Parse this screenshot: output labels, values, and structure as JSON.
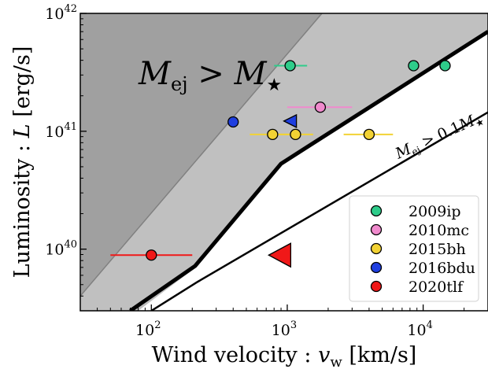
{
  "chart_data": {
    "type": "scatter",
    "title": "",
    "xlabel": "Wind velocity : v_w [km/s]",
    "ylabel": "Luminosity : L [erg/s]",
    "xlabel_parts": {
      "text": "Wind velocity : ",
      "var": "v",
      "sub": "w",
      "unit": " [km/s]"
    },
    "ylabel_parts": {
      "text": "Luminosity : ",
      "var": "L",
      "unit": " [erg/s]"
    },
    "xscale": "log",
    "yscale": "log",
    "xlim": [
      30,
      30000
    ],
    "ylim": [
      3e+39,
      1e+42
    ],
    "grid": false,
    "legend_position": "bottom-right",
    "x_ticks": [
      {
        "value": 100,
        "base": "10",
        "exp": "2"
      },
      {
        "value": 1000,
        "base": "10",
        "exp": "3"
      },
      {
        "value": 10000,
        "base": "10",
        "exp": "4"
      }
    ],
    "y_ticks": [
      {
        "value": 1e+40,
        "base": "10",
        "exp": "40"
      },
      {
        "value": 1e+41,
        "base": "10",
        "exp": "41"
      },
      {
        "value": 1e+42,
        "base": "10",
        "exp": "42"
      }
    ],
    "annotations": [
      {
        "text": "M_ej > M_star",
        "main": "M",
        "sub": "ej",
        "rel": " > ",
        "main2": "M",
        "sub2": "★"
      },
      {
        "text": "M_ej > 0.1 M_star",
        "main": "M",
        "sub": "ej",
        "rel": " > 0.1",
        "main2": "M",
        "sub2": "★"
      }
    ],
    "regions": [
      {
        "name": "dark-region",
        "color": "#a0a0a0",
        "points": [
          [
            30,
            4e+39
          ],
          [
            1800,
            1e+42
          ],
          [
            30,
            1e+42
          ]
        ]
      },
      {
        "name": "light-region",
        "color": "#c0c0c0",
        "points": [
          [
            30,
            4e+39
          ],
          [
            1800,
            1e+42
          ],
          [
            30000,
            1e+42
          ],
          [
            30000,
            7e+41
          ],
          [
            900,
            5.3e+40
          ],
          [
            220,
            7.2e+39
          ],
          [
            80,
            3e+39
          ],
          [
            30,
            3e+39
          ]
        ]
      }
    ],
    "lines": [
      {
        "name": "thick-boundary",
        "width": 5,
        "points": [
          [
            70,
            3e+39
          ],
          [
            210,
            7.2e+39
          ],
          [
            900,
            5.3e+40
          ],
          [
            30000,
            7e+41
          ]
        ]
      },
      {
        "name": "thin-boundary",
        "width": 2.5,
        "points": [
          [
            100,
            3e+39
          ],
          [
            220,
            5.3e+39
          ],
          [
            30000,
            1.45e+41
          ]
        ]
      }
    ],
    "series": [
      {
        "name": "2009ip",
        "color": "#2ecc8a",
        "marker": "circle",
        "points": [
          {
            "x": 1050,
            "y": 3.6e+41,
            "xerr": [
              800,
              1400
            ]
          },
          {
            "x": 8500,
            "y": 3.6e+41
          },
          {
            "x": 14500,
            "y": 3.6e+41
          }
        ]
      },
      {
        "name": "2010mc",
        "color": "#f08acd",
        "marker": "circle",
        "points": [
          {
            "x": 1750,
            "y": 1.6e+41,
            "xerr": [
              1000,
              3000
            ]
          }
        ]
      },
      {
        "name": "2015bh",
        "color": "#f2d234",
        "marker": "circle",
        "points": [
          {
            "x": 780,
            "y": 9.4e+40,
            "xerr": [
              530,
              1100
            ]
          },
          {
            "x": 1150,
            "y": 9.4e+40,
            "xerr": [
              850,
              1550
            ]
          },
          {
            "x": 4000,
            "y": 9.4e+40,
            "xerr": [
              2600,
              6000
            ]
          }
        ]
      },
      {
        "name": "2016bdu",
        "color": "#1f3fe0",
        "marker": "circle",
        "points": [
          {
            "x": 400,
            "y": 1.2e+41
          },
          {
            "x": 1050,
            "y": 1.22e+41,
            "marker": "triangle-left-small"
          }
        ]
      },
      {
        "name": "2020tlf",
        "color": "#f01818",
        "marker": "circle",
        "points": [
          {
            "x": 100,
            "y": 8.9e+39,
            "xerr": [
              50,
              200
            ]
          },
          {
            "x": 880,
            "y": 8.9e+39,
            "marker": "triangle-left-large"
          }
        ]
      }
    ]
  }
}
